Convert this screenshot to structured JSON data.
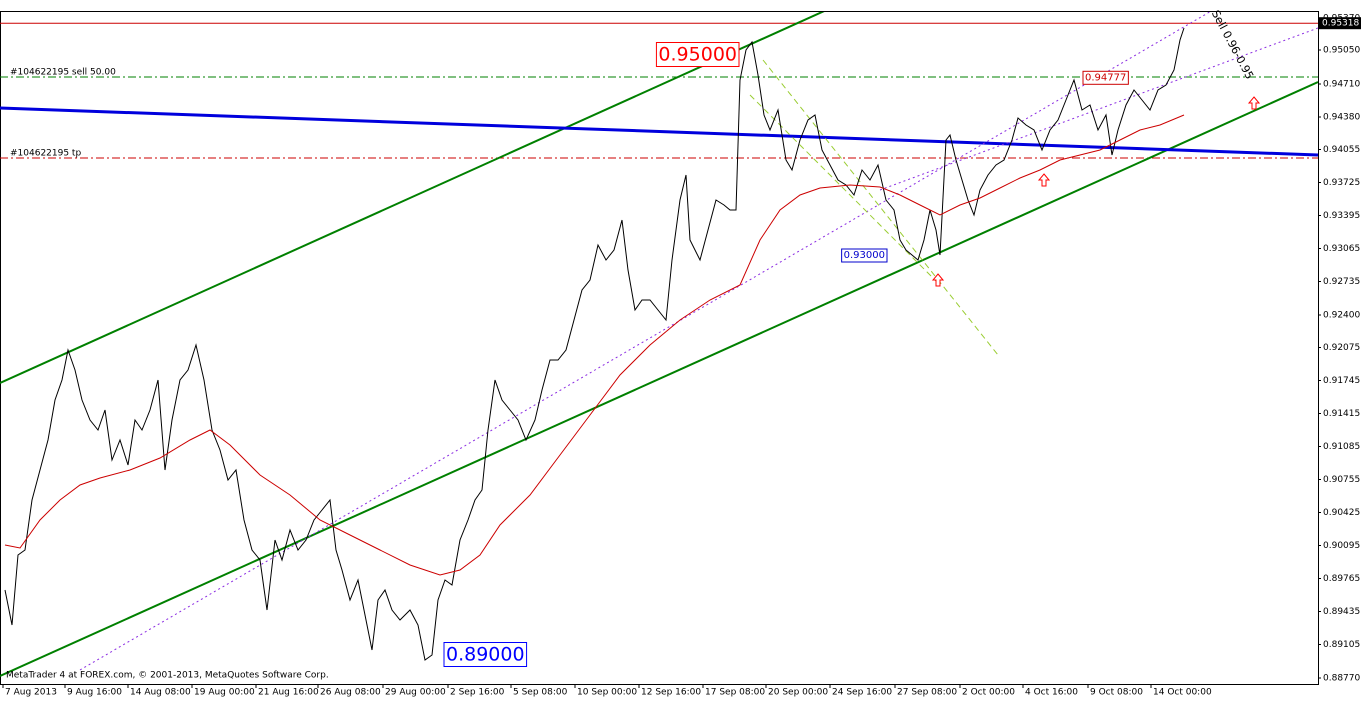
{
  "chart_data": {
    "type": "line",
    "footer": "MetaTrader 4 at FOREX.com, © 2001-2013, MetaQuotes Software Corp.",
    "xlim": [
      0,
      1318
    ],
    "ylim": [
      0.8871,
      0.9543
    ],
    "xticks": [
      {
        "value": 3,
        "label": "7 Aug 2013"
      },
      {
        "value": 65,
        "label": "9 Aug 16:00"
      },
      {
        "value": 128,
        "label": "14 Aug 08:00"
      },
      {
        "value": 192,
        "label": "19 Aug 00:00"
      },
      {
        "value": 256,
        "label": "21 Aug 16:00"
      },
      {
        "value": 318,
        "label": "26 Aug 08:00"
      },
      {
        "value": 383,
        "label": "29 Aug 00:00"
      },
      {
        "value": 448,
        "label": "2 Sep 16:00"
      },
      {
        "value": 511,
        "label": "5 Sep 08:00"
      },
      {
        "value": 575,
        "label": "10 Sep 00:00"
      },
      {
        "value": 639,
        "label": "12 Sep 16:00"
      },
      {
        "value": 703,
        "label": "17 Sep 08:00"
      },
      {
        "value": 766,
        "label": "20 Sep 00:00"
      },
      {
        "value": 830,
        "label": "24 Sep 16:00"
      },
      {
        "value": 895,
        "label": "27 Sep 08:00"
      },
      {
        "value": 960,
        "label": "2 Oct 00:00"
      },
      {
        "value": 1023,
        "label": "4 Oct 16:00"
      },
      {
        "value": 1088,
        "label": "9 Oct 08:00"
      },
      {
        "value": 1151,
        "label": "14 Oct 00:00"
      }
    ],
    "yticks": [
      {
        "value": 0.9537,
        "label": "0.95370"
      },
      {
        "value": 0.9505,
        "label": "0.95050"
      },
      {
        "value": 0.9471,
        "label": "0.94710"
      },
      {
        "value": 0.9438,
        "label": "0.94380"
      },
      0.94055,
      0.93725,
      0.93395,
      0.93065,
      0.92735,
      {
        "value": 0.924,
        "label": "0.92400"
      },
      0.92075,
      0.91745,
      0.91415,
      0.91085,
      0.90755,
      0.90425,
      0.90095,
      0.89765,
      0.89435,
      0.89105,
      {
        "value": 0.8877,
        "label": "0.88770"
      }
    ],
    "series": [
      {
        "color": "#000000",
        "x": [
          5,
          12,
          18,
          25,
          32,
          40,
          48,
          55,
          62,
          68,
          75,
          82,
          90,
          98,
          105,
          112,
          120,
          128,
          135,
          142,
          150,
          158,
          165,
          172,
          180,
          188,
          196,
          204,
          212,
          220,
          228,
          236,
          244,
          252,
          260,
          267,
          275,
          282,
          290,
          298,
          306,
          314,
          322,
          330,
          336,
          342,
          350,
          358,
          366,
          372,
          378,
          385,
          392,
          400,
          410,
          418,
          425,
          432,
          438,
          445,
          452,
          460,
          468,
          475,
          482,
          488,
          495,
          502,
          510,
          518,
          526,
          535,
          542,
          550,
          558,
          566,
          574,
          582,
          590,
          598,
          606,
          614,
          622,
          628,
          635,
          642,
          650,
          658,
          666,
          672,
          680,
          686,
          690,
          695,
          700,
          708,
          716,
          724,
          730,
          736,
          740,
          746,
          752,
          758,
          764,
          770,
          778,
          786,
          792,
          800,
          808,
          815,
          822,
          830,
          838,
          846,
          854,
          862,
          870,
          878,
          886,
          894,
          900,
          906,
          912,
          918,
          924,
          930,
          936,
          940,
          946,
          950,
          956,
          962,
          968,
          974,
          980,
          988,
          996,
          1004,
          1012,
          1018,
          1026,
          1034,
          1042,
          1050,
          1058,
          1066,
          1074,
          1082,
          1090,
          1098,
          1106,
          1112,
          1118,
          1126,
          1134,
          1142,
          1150,
          1158,
          1166,
          1174,
          1180,
          1184
        ],
        "values": [
          0.8965,
          0.893,
          0.9,
          0.9005,
          0.9055,
          0.9085,
          0.9115,
          0.9155,
          0.9175,
          0.9205,
          0.9185,
          0.9155,
          0.9135,
          0.9125,
          0.9145,
          0.9095,
          0.9115,
          0.909,
          0.9135,
          0.9125,
          0.9145,
          0.9175,
          0.9085,
          0.9135,
          0.9175,
          0.9185,
          0.921,
          0.9175,
          0.9125,
          0.9105,
          0.9075,
          0.9085,
          0.9035,
          0.9005,
          0.8995,
          0.8945,
          0.9015,
          0.8995,
          0.9025,
          0.9005,
          0.9015,
          0.9035,
          0.9045,
          0.9055,
          0.9005,
          0.8985,
          0.8955,
          0.8975,
          0.8935,
          0.8905,
          0.8955,
          0.8965,
          0.8945,
          0.8935,
          0.8945,
          0.893,
          0.8895,
          0.89,
          0.8955,
          0.8975,
          0.897,
          0.9015,
          0.9035,
          0.9055,
          0.9065,
          0.9125,
          0.9175,
          0.9155,
          0.9145,
          0.9135,
          0.9115,
          0.9135,
          0.9165,
          0.9195,
          0.9195,
          0.9205,
          0.9235,
          0.9265,
          0.9275,
          0.931,
          0.9295,
          0.9305,
          0.9335,
          0.9285,
          0.9245,
          0.9255,
          0.9255,
          0.9245,
          0.9235,
          0.9295,
          0.9355,
          0.938,
          0.9315,
          0.9305,
          0.9295,
          0.9325,
          0.9355,
          0.935,
          0.9345,
          0.9345,
          0.9475,
          0.9505,
          0.9513,
          0.948,
          0.944,
          0.9425,
          0.9445,
          0.9395,
          0.9385,
          0.9415,
          0.9435,
          0.944,
          0.9405,
          0.939,
          0.9375,
          0.937,
          0.936,
          0.9385,
          0.9375,
          0.939,
          0.9355,
          0.9345,
          0.9315,
          0.9305,
          0.93,
          0.9295,
          0.9315,
          0.9345,
          0.9325,
          0.93,
          0.9415,
          0.942,
          0.9395,
          0.9375,
          0.9355,
          0.934,
          0.9365,
          0.938,
          0.939,
          0.9395,
          0.9415,
          0.9437,
          0.943,
          0.9425,
          0.9405,
          0.9425,
          0.9435,
          0.9455,
          0.9475,
          0.9445,
          0.945,
          0.9425,
          0.944,
          0.94,
          0.9425,
          0.945,
          0.9465,
          0.9455,
          0.9445,
          0.9465,
          0.947,
          0.9485,
          0.9515,
          0.9527
        ]
      },
      {
        "color": "#cc0000",
        "x": [
          5,
          20,
          40,
          60,
          80,
          100,
          130,
          160,
          190,
          210,
          230,
          260,
          290,
          320,
          350,
          380,
          410,
          440,
          460,
          480,
          500,
          530,
          560,
          590,
          620,
          650,
          680,
          710,
          740,
          760,
          780,
          800,
          820,
          850,
          880,
          900,
          920,
          940,
          960,
          980,
          1000,
          1020,
          1040,
          1060,
          1080,
          1100,
          1120,
          1140,
          1160,
          1184
        ],
        "values": [
          0.901,
          0.9007,
          0.9035,
          0.9055,
          0.907,
          0.9077,
          0.9085,
          0.9097,
          0.9115,
          0.9125,
          0.911,
          0.908,
          0.906,
          0.9035,
          0.902,
          0.9005,
          0.899,
          0.898,
          0.8985,
          0.9,
          0.903,
          0.906,
          0.91,
          0.914,
          0.918,
          0.921,
          0.9235,
          0.9255,
          0.927,
          0.9315,
          0.9345,
          0.936,
          0.9367,
          0.937,
          0.9368,
          0.936,
          0.935,
          0.934,
          0.935,
          0.9357,
          0.9367,
          0.9377,
          0.9385,
          0.9395,
          0.94,
          0.9405,
          0.9415,
          0.9425,
          0.943,
          0.944
        ]
      }
    ],
    "trendlines": [
      {
        "color": "#008000",
        "style": "solid",
        "x": [
          0,
          842
        ],
        "values": [
          0.9172,
          0.9552
        ]
      },
      {
        "color": "#008000",
        "style": "solid",
        "x": [
          0,
          1318
        ],
        "values": [
          0.8879,
          0.9473
        ]
      },
      {
        "color": "#0000dd",
        "style": "thick",
        "x": [
          0,
          1318
        ],
        "values": [
          0.9447,
          0.94
        ]
      },
      {
        "color": "#8a2be2",
        "style": "dotted",
        "x": [
          80,
          1225
        ],
        "values": [
          0.8885,
          0.9552
        ]
      },
      {
        "color": "#8a2be2",
        "style": "dotted",
        "x": [
          880,
          1318
        ],
        "values": [
          0.9365,
          0.9527
        ]
      },
      {
        "color": "#9acd32",
        "style": "dashed",
        "x": [
          763,
          998
        ],
        "values": [
          0.9495,
          0.92
        ]
      },
      {
        "color": "#9acd32",
        "style": "dashed",
        "x": [
          750,
          940
        ],
        "values": [
          0.946,
          0.927
        ]
      }
    ],
    "levels": [
      {
        "value": 0.95318,
        "color": "#cc0000",
        "style": "solid"
      },
      {
        "value": 0.9478,
        "color": "#008000",
        "style": "dashdot",
        "label": "#104622195 sell 50.00"
      },
      {
        "value": 0.9397,
        "color": "#cc0000",
        "style": "dashdot",
        "label": "#104622195 tp"
      }
    ],
    "annotations": [
      {
        "label": "0.95000",
        "value": 0.95,
        "x": 740,
        "color": "#ff0000",
        "kind": "big",
        "anchor": "end"
      },
      {
        "label": "0.89000",
        "value": 0.89,
        "x": 443,
        "color": "#0000ff",
        "kind": "big",
        "anchor": "start"
      },
      {
        "label": "0.93000",
        "value": 0.93,
        "x": 888,
        "color": "#0000cc",
        "kind": "small",
        "anchor": "end"
      },
      {
        "label": "0.94777",
        "value": 0.94777,
        "x": 1082,
        "color": "#cc0000",
        "kind": "small",
        "anchor": "start"
      }
    ],
    "rotated_text": {
      "label": "Sell 0.96-0.95",
      "x": 1232,
      "value": 0.951,
      "angle": 62
    },
    "arrows": {
      "color": "#ff0000",
      "x": [
        938,
        1044,
        1254
      ],
      "values": [
        0.9275,
        0.9375,
        0.9452
      ]
    }
  }
}
